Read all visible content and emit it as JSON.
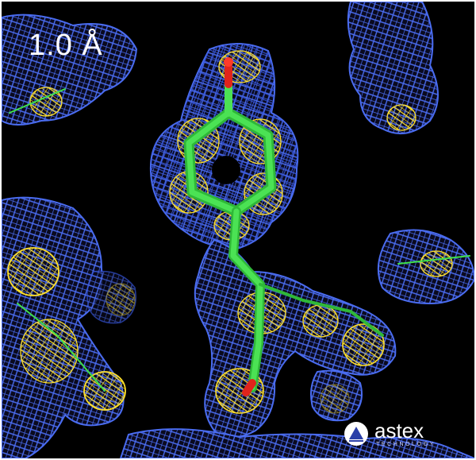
{
  "image": {
    "resolution_label": "1.0 Å",
    "logo": {
      "name": "astex",
      "subtitle": "TECHNOLOGY"
    }
  },
  "colors": {
    "background": "#000000",
    "density_mesh": "#3f5fe0",
    "inner_mesh": "#ffe02a",
    "carbon_stick": "#33d13d",
    "oxygen": "#e0241b"
  }
}
